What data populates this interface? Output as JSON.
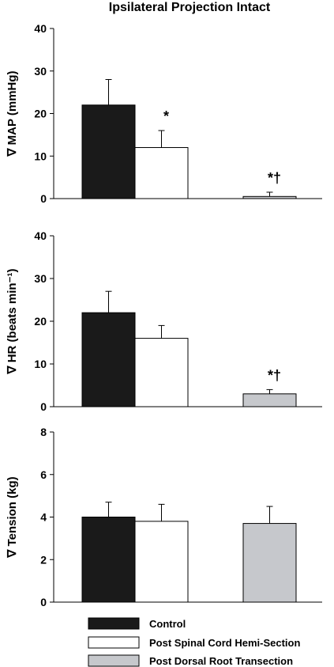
{
  "title": "Ipsilateral Projection Intact",
  "legend": {
    "position": "bottom",
    "items": [
      {
        "name": "Control",
        "color": "#1a1a1a"
      },
      {
        "name": "Post Spinal Cord Hemi-Section",
        "color": "#ffffff"
      },
      {
        "name": "Post Dorsal Root Transection",
        "color": "#c6c8cc"
      }
    ]
  },
  "chart_data": [
    {
      "type": "bar",
      "ylabel": "∇ MAP (mmHg)",
      "ylim": [
        0,
        40
      ],
      "yticks": [
        "0",
        "10",
        "20",
        "30",
        "40"
      ],
      "series": [
        {
          "name": "Control",
          "value": 22,
          "error": 6
        },
        {
          "name": "Post Spinal Cord Hemi-Section",
          "value": 12,
          "error": 4
        },
        {
          "name": "Post Dorsal Root Transection",
          "value": 0.5,
          "error": 1
        }
      ],
      "annotations": [
        "",
        "*",
        "*†"
      ]
    },
    {
      "type": "bar",
      "ylabel": "∇ HR (beats min⁻¹)",
      "ylim": [
        0,
        40
      ],
      "yticks": [
        "0",
        "10",
        "20",
        "30",
        "40"
      ],
      "series": [
        {
          "name": "Control",
          "value": 22,
          "error": 5
        },
        {
          "name": "Post Spinal Cord Hemi-Section",
          "value": 16,
          "error": 3
        },
        {
          "name": "Post Dorsal Root Transection",
          "value": 3,
          "error": 1
        }
      ],
      "annotations": [
        "",
        "",
        "*†"
      ]
    },
    {
      "type": "bar",
      "ylabel": "∇ Tension (kg)",
      "ylim": [
        0,
        8
      ],
      "yticks": [
        "0",
        "2",
        "4",
        "6",
        "8"
      ],
      "series": [
        {
          "name": "Control",
          "value": 4.0,
          "error": 0.7
        },
        {
          "name": "Post Spinal Cord Hemi-Section",
          "value": 3.8,
          "error": 0.8
        },
        {
          "name": "Post Dorsal Root Transection",
          "value": 3.7,
          "error": 0.8
        }
      ],
      "annotations": [
        "",
        "",
        ""
      ]
    }
  ]
}
